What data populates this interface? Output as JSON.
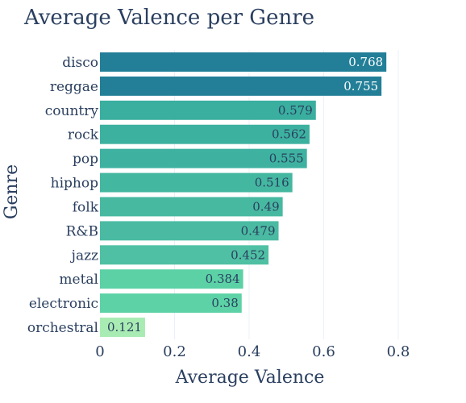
{
  "chart_data": {
    "type": "bar",
    "orientation": "horizontal",
    "title": "Average Valence per Genre",
    "xlabel": "Average Valence",
    "ylabel": "Genre",
    "xlim": [
      0,
      0.8
    ],
    "xticks": [
      0,
      0.2,
      0.4,
      0.6,
      0.8
    ],
    "xtick_labels": [
      "0",
      "0.2",
      "0.4",
      "0.6",
      "0.8"
    ],
    "grid": true,
    "legend": "none",
    "categories": [
      "disco",
      "reggae",
      "country",
      "rock",
      "pop",
      "hiphop",
      "folk",
      "R&B",
      "jazz",
      "metal",
      "electronic",
      "orchestral"
    ],
    "values": [
      0.768,
      0.755,
      0.579,
      0.562,
      0.555,
      0.516,
      0.49,
      0.479,
      0.452,
      0.384,
      0.38,
      0.121
    ],
    "value_labels": [
      "0.768",
      "0.755",
      "0.579",
      "0.562",
      "0.555",
      "0.516",
      "0.49",
      "0.479",
      "0.452",
      "0.384",
      "0.38",
      "0.121"
    ],
    "colors": {
      "high": "#237f98",
      "mid": "#45b6a0",
      "low": "#56cca5",
      "lowest": "#abeab2"
    },
    "bar_colors": [
      "#237f98",
      "#237f98",
      "#3aae9f",
      "#3db1a0",
      "#3eb1a0",
      "#44b7a1",
      "#48b9a1",
      "#4abba2",
      "#4fc0a3",
      "#5cd1a6",
      "#5dd2a6",
      "#a9ecb3"
    ],
    "label_colors": [
      "#ffffff",
      "#ffffff",
      "#2a3f5f",
      "#2a3f5f",
      "#2a3f5f",
      "#2a3f5f",
      "#2a3f5f",
      "#2a3f5f",
      "#2a3f5f",
      "#2a3f5f",
      "#2a3f5f",
      "#2a3f5f"
    ]
  }
}
